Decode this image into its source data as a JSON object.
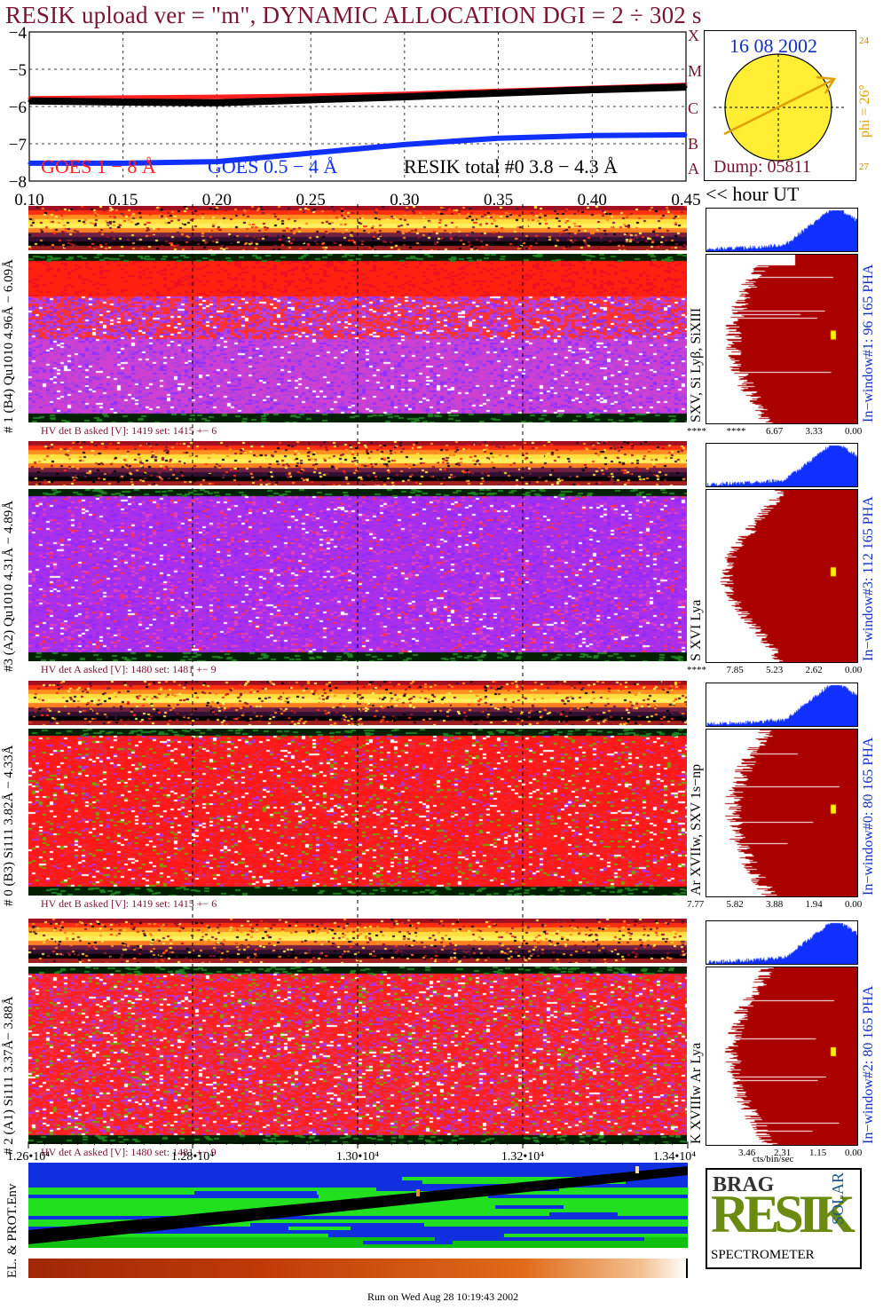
{
  "title": "RESIK upload ver = \"m\", DYNAMIC ALLOCATION  DGI =   2 ÷ 302 s",
  "goes_panel": {
    "y_ticks": [
      "−4",
      "−5",
      "−6",
      "−7",
      "−8"
    ],
    "x_ticks": [
      "0.10",
      "0.15",
      "0.20",
      "0.25",
      "0.30",
      "0.35",
      "0.40",
      "0.45"
    ],
    "x_unit_label": "<< hour UT",
    "legend": {
      "goes_long": "GOES 1 − 8 Å",
      "goes_short": "GOES 0.5 − 4 Å",
      "resik": "RESIK total #0  3.8 − 4.3 Å"
    },
    "class_letters": [
      "A",
      "B",
      "C",
      "M",
      "X"
    ],
    "colors": {
      "goes_long": "#ff2020",
      "goes_short": "#1030ff",
      "resik": "#000000",
      "accent": "#7a1530"
    }
  },
  "sun_panel": {
    "date": "16 08 2002",
    "phi_label": "phi = 26°",
    "scale_top": "24",
    "scale_bottom": "27",
    "dump": "Dump: 05811",
    "colors": {
      "disk": "#ffee33",
      "arrow": "#e0a000",
      "text_blue": "#1030c0",
      "text_red": "#7a1530"
    }
  },
  "channels": [
    {
      "label": "# 1 (B4) Qu1010 4.96Å − 6.09Å",
      "line_label": "SXV, Si Lyβ, SiXIII",
      "window_label": "In−window#1:  96 165  PHA",
      "hv_text": "HV det B asked [V]:  1419 set:  1415 +−    6",
      "scale_ticks": [
        "****",
        "****",
        "6.67",
        "3.33",
        "0.00"
      ]
    },
    {
      "label": "#3 (A2) Qu1010  4.31Å − 4.89Å",
      "line_label": "S XVI Lya",
      "window_label": "In−window#3:  112 165  PHA",
      "hv_text": "HV det A asked [V]:  1480 set:  1481 +−    9",
      "scale_ticks": [
        "****",
        "7.85",
        "5.23",
        "2.62",
        "0.00"
      ]
    },
    {
      "label": "# 0 (B3) Si111  3.82Å − 4.33Å",
      "line_label": "Ar XVIIw,  SXV 1s−np",
      "window_label": "In−window#0:  80 165  PHA",
      "hv_text": "HV det B asked [V]:  1419 set:  1415 +−    6",
      "scale_ticks": [
        "7.77",
        "5.82",
        "3.88",
        "1.94",
        "0.00"
      ]
    },
    {
      "label": "# 2 (A1) Si111  3.37Å− 3.88Å",
      "line_label": "K XVIIIw  Ar Lya",
      "window_label": "In−window#2:  80 165  PHA",
      "hv_text": "HV det A asked [V]:  1480 set:  1481 +−    9",
      "scale_ticks": [
        "3.46",
        "2.31",
        "1.15",
        "0.00"
      ]
    }
  ],
  "counts_unit": "cts/bin/sec",
  "bottom_axis": {
    "ticks": [
      "1.26•10⁴",
      "1.28•10⁴",
      "1.30•10⁴",
      "1.32•10⁴",
      "1.34•10⁴"
    ]
  },
  "env_label": "EL. & PROT.Env",
  "logo": {
    "letters_top": "BRAG",
    "letters_main": "RESIK",
    "letters_side": "SOLAR",
    "caption": "SPECTROMETER"
  },
  "footer": "Run on Wed Aug 28 10:19:43 2002",
  "chart_data": {
    "type": "line",
    "title": "RESIK upload ver = \"m\", DYNAMIC ALLOCATION  DGI =   2 ÷ 302 s",
    "xlabel": "<< hour UT",
    "ylabel": "",
    "xlim": [
      0.1,
      0.45
    ],
    "ylim": [
      -8,
      -4
    ],
    "series": [
      {
        "name": "GOES 1 − 8 Å",
        "x": [
          0.1,
          0.15,
          0.2,
          0.25,
          0.3,
          0.35,
          0.4,
          0.45
        ],
        "values": [
          -5.78,
          -5.76,
          -5.74,
          -5.71,
          -5.66,
          -5.58,
          -5.5,
          -5.42
        ]
      },
      {
        "name": "GOES 0.5 − 4 Å",
        "x": [
          0.1,
          0.15,
          0.2,
          0.25,
          0.3,
          0.35,
          0.4,
          0.45
        ],
        "values": [
          -7.52,
          -7.52,
          -7.48,
          -7.25,
          -7.02,
          -6.85,
          -6.78,
          -6.76
        ]
      },
      {
        "name": "RESIK total #0  3.8 − 4.3 Å",
        "x": [
          0.1,
          0.15,
          0.2,
          0.25,
          0.3,
          0.35,
          0.4,
          0.45
        ],
        "values": [
          -5.85,
          -5.88,
          -5.9,
          -5.82,
          -5.74,
          -5.64,
          -5.55,
          -5.48
        ]
      }
    ]
  }
}
